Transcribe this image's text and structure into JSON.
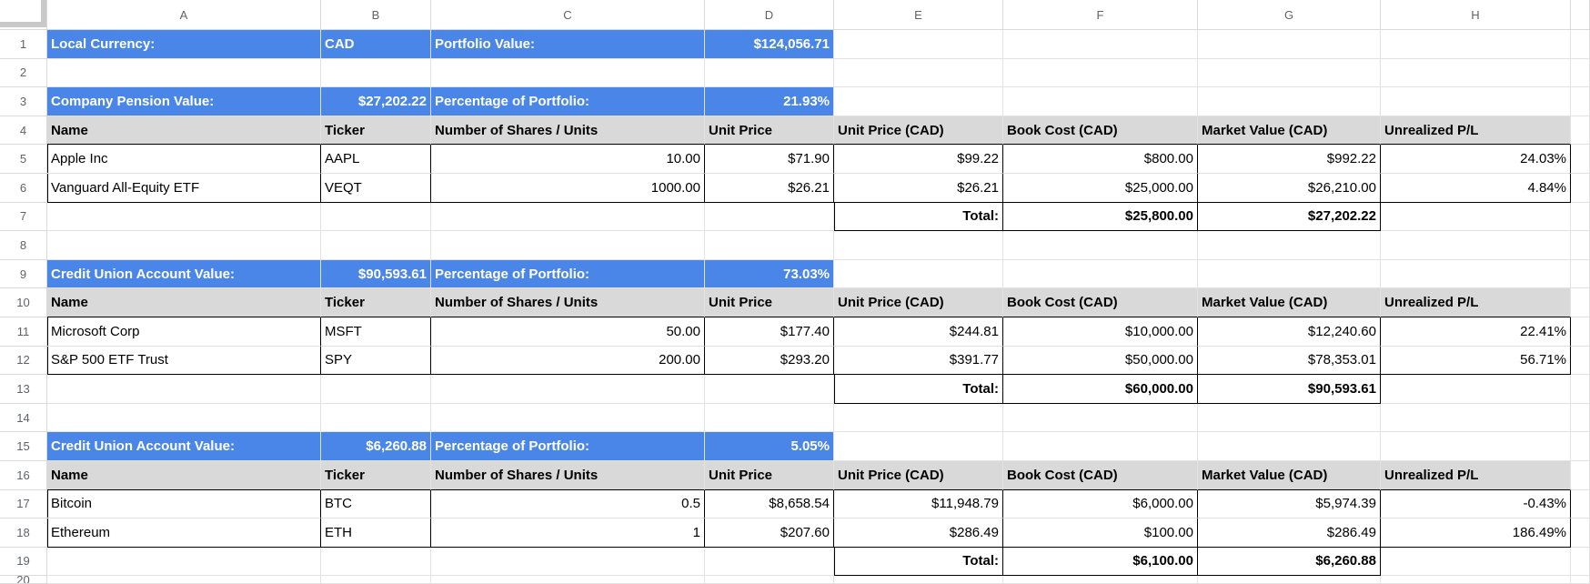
{
  "sheet": {
    "colors": {
      "banner_blue": "#4a86e8",
      "table_header_gray": "#d9d9d9",
      "gridline": "#e2e2e2",
      "table_border": "#000000",
      "header_text": "#5f6368"
    },
    "column_letters": [
      "A",
      "B",
      "C",
      "D",
      "E",
      "F",
      "G",
      "H"
    ],
    "row_count": 20,
    "rows": {
      "1": {
        "role": "banner",
        "cells": {
          "A": "Local Currency:",
          "B": "CAD",
          "C": "Portfolio Value:",
          "D": "$124,056.71"
        }
      },
      "2": {
        "role": "empty",
        "cells": {}
      },
      "3": {
        "role": "banner",
        "cells": {
          "A": "Company Pension Value:",
          "B": "$27,202.22",
          "C": "Percentage of Portfolio:",
          "D": "21.93%"
        }
      },
      "4": {
        "role": "head",
        "cells": {
          "A": "Name",
          "B": "Ticker",
          "C": "Number of Shares / Units",
          "D": "Unit Price",
          "E": "Unit Price (CAD)",
          "F": "Book Cost (CAD)",
          "G": "Market Value (CAD)",
          "H": "Unrealized P/L"
        }
      },
      "5": {
        "role": "data",
        "cells": {
          "A": "Apple Inc",
          "B": "AAPL",
          "C": "10.00",
          "D": "$71.90",
          "E": "$99.22",
          "F": "$800.00",
          "G": "$992.22",
          "H": "24.03%"
        }
      },
      "6": {
        "role": "data",
        "cells": {
          "A": "Vanguard All-Equity ETF",
          "B": "VEQT",
          "C": "1000.00",
          "D": "$26.21",
          "E": "$26.21",
          "F": "$25,000.00",
          "G": "$26,210.00",
          "H": "4.84%"
        }
      },
      "7": {
        "role": "total",
        "cells": {
          "E": "Total:",
          "F": "$25,800.00",
          "G": "$27,202.22"
        }
      },
      "8": {
        "role": "empty",
        "cells": {}
      },
      "9": {
        "role": "banner",
        "cells": {
          "A": "Credit Union Account Value:",
          "B": "$90,593.61",
          "C": "Percentage of Portfolio:",
          "D": "73.03%"
        }
      },
      "10": {
        "role": "head",
        "cells": {
          "A": "Name",
          "B": "Ticker",
          "C": "Number of Shares / Units",
          "D": "Unit Price",
          "E": "Unit Price (CAD)",
          "F": "Book Cost (CAD)",
          "G": "Market Value (CAD)",
          "H": "Unrealized P/L"
        }
      },
      "11": {
        "role": "data",
        "cells": {
          "A": "Microsoft Corp",
          "B": "MSFT",
          "C": "50.00",
          "D": "$177.40",
          "E": "$244.81",
          "F": "$10,000.00",
          "G": "$12,240.60",
          "H": "22.41%"
        }
      },
      "12": {
        "role": "data",
        "cells": {
          "A": "S&P 500 ETF Trust",
          "B": "SPY",
          "C": "200.00",
          "D": "$293.20",
          "E": "$391.77",
          "F": "$50,000.00",
          "G": "$78,353.01",
          "H": "56.71%"
        }
      },
      "13": {
        "role": "total",
        "cells": {
          "E": "Total:",
          "F": "$60,000.00",
          "G": "$90,593.61"
        }
      },
      "14": {
        "role": "empty",
        "cells": {}
      },
      "15": {
        "role": "banner",
        "cells": {
          "A": "Credit Union Account Value:",
          "B": "$6,260.88",
          "C": "Percentage of Portfolio:",
          "D": "5.05%"
        }
      },
      "16": {
        "role": "head",
        "cells": {
          "A": "Name",
          "B": "Ticker",
          "C": "Number of Shares / Units",
          "D": "Unit Price",
          "E": "Unit Price (CAD)",
          "F": "Book Cost (CAD)",
          "G": "Market Value (CAD)",
          "H": "Unrealized P/L"
        }
      },
      "17": {
        "role": "data",
        "cells": {
          "A": "Bitcoin",
          "B": "BTC",
          "C": "0.5",
          "D": "$8,658.54",
          "E": "$11,948.79",
          "F": "$6,000.00",
          "G": "$5,974.39",
          "H": "-0.43%"
        }
      },
      "18": {
        "role": "data",
        "cells": {
          "A": "Ethereum",
          "B": "ETH",
          "C": "1",
          "D": "$207.60",
          "E": "$286.49",
          "F": "$100.00",
          "G": "$286.49",
          "H": "186.49%"
        }
      },
      "19": {
        "role": "total",
        "cells": {
          "E": "Total:",
          "F": "$6,100.00",
          "G": "$6,260.88"
        }
      },
      "20": {
        "role": "empty",
        "cells": {}
      }
    }
  }
}
